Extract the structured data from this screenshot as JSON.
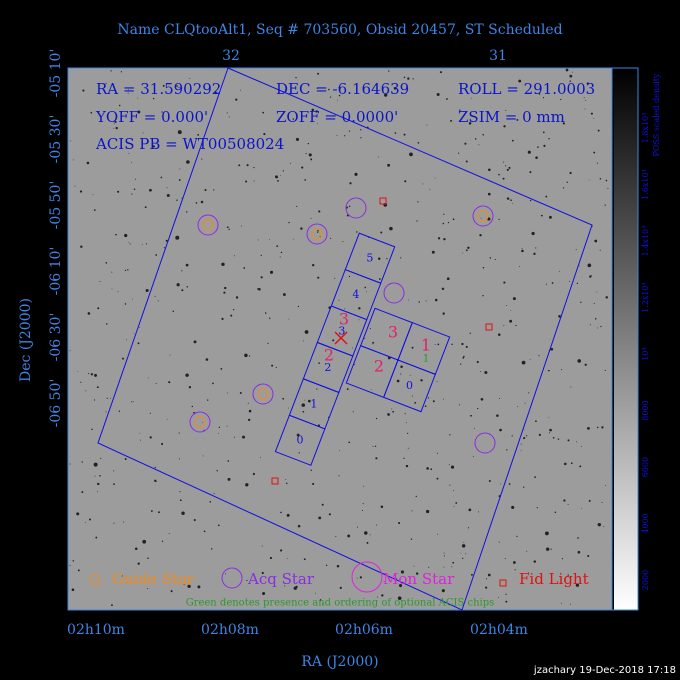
{
  "header": {
    "title": "Name CLQtooAlt1, Seq # 703560, Obsid 20457, ST Scheduled"
  },
  "axes": {
    "top_ticks": [
      "32",
      "31"
    ],
    "left_ticks": [
      "-05 10'",
      "-05 30'",
      "-05 50'",
      "-06 10'",
      "-06 30'",
      "-06 50'"
    ],
    "bottom_ticks": [
      "02h10m",
      "02h08m",
      "02h06m",
      "02h04m"
    ],
    "x_label": "RA (J2000)",
    "y_label": "Dec (J2000)"
  },
  "info": [
    "RA = 31.590292",
    "DEC = -6.164639",
    "ROLL = 291.0003",
    "YOFF = 0.000'",
    "ZOFF = 0.0000'",
    "ZSIM = 0 mm",
    "ACIS PB = WT00508024"
  ],
  "colorbar": {
    "label": "POSS scaled density",
    "ticks": [
      "2000",
      "4000",
      "6000",
      "8000",
      "10⁴",
      "1.2x10⁴",
      "1.4x10⁴",
      "1.6x10⁴",
      "1.8x10⁴"
    ]
  },
  "chips": {
    "i_array": [
      "5",
      "4",
      "3",
      "2",
      "1",
      "0"
    ],
    "s_array": [
      "3",
      "1",
      "2",
      "0"
    ],
    "optional_left": [
      "3",
      "2"
    ],
    "optional_right": [
      "3",
      "1",
      "2"
    ],
    "optional_green": "1"
  },
  "legend": [
    "Guide Star",
    "Acq Star",
    "Mon Star",
    "Fid Light"
  ],
  "note": "Green denotes presence and ordering of optional ACIS chips",
  "footer": "jzachary 19-Dec-2018 17:18"
}
